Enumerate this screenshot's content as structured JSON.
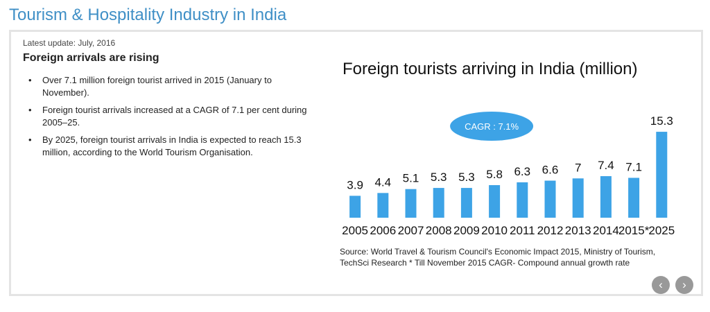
{
  "page": {
    "title": "Tourism & Hospitality Industry in India"
  },
  "card": {
    "update": "Latest update: July, 2016",
    "heading": "Foreign arrivals are rising",
    "bullets": [
      "Over 7.1 million foreign tourist arrived in 2015 (January to November).",
      "Foreign tourist arrivals increased at a CAGR of 7.1 per cent during 2005–25.",
      "By 2025, foreign tourist arrivals in India is expected to reach 15.3 million, according to the World Tourism Organisation."
    ],
    "source": "Source: World Travel & Tourism Council's Economic Impact 2015, Ministry of Tourism, TechSci Research * Till November 2015 CAGR- Compound annual growth rate",
    "nav": {
      "prev_icon": "‹",
      "next_icon": "›"
    }
  },
  "chart_data": {
    "type": "bar",
    "title": "Foreign tourists arriving in India (million)",
    "categories": [
      "2005",
      "2006",
      "2007",
      "2008",
      "2009",
      "2010",
      "2011",
      "2012",
      "2013",
      "2014",
      "2015*",
      "2025"
    ],
    "values": [
      3.9,
      4.4,
      5.1,
      5.3,
      5.3,
      5.8,
      6.3,
      6.6,
      7,
      7.4,
      7.1,
      15.3
    ],
    "data_labels": [
      "3.9",
      "4.4",
      "5.1",
      "5.3",
      "5.3",
      "5.8",
      "6.3",
      "6.6",
      "7",
      "7.4",
      "7.1",
      "15.3"
    ],
    "annotation": "CAGR : 7.1%",
    "bar_color": "#3da3e6",
    "annotation_color": "#3da3e6",
    "xlabel": "",
    "ylabel": "",
    "grid": false,
    "legend": "none"
  }
}
